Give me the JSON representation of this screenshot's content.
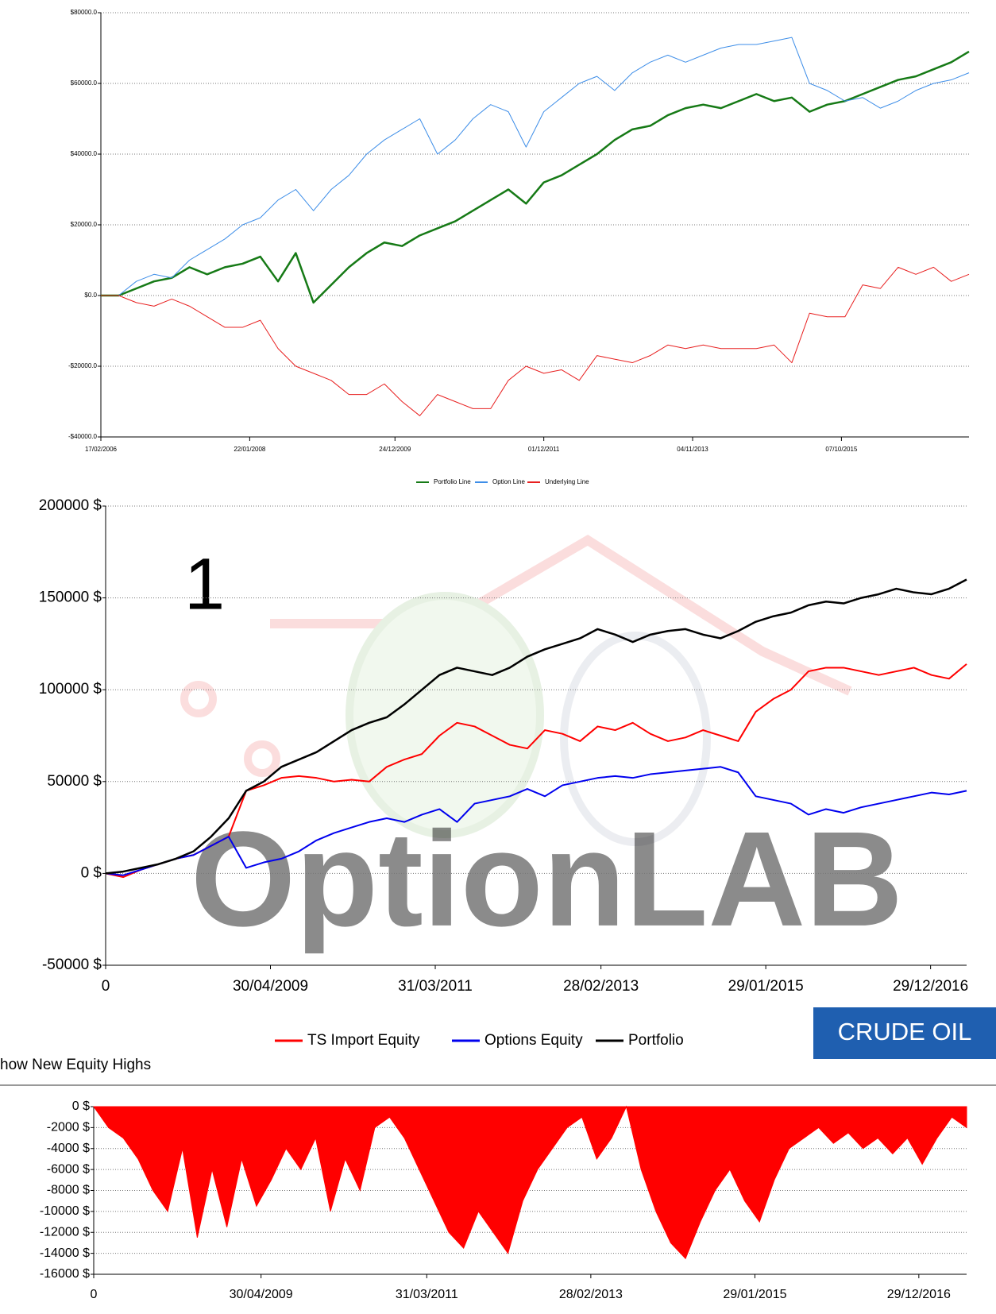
{
  "chart_data": [
    {
      "type": "line",
      "xlim": [
        0,
        49
      ],
      "xticks": [
        {
          "value": 0,
          "label": "17/02/2006"
        },
        {
          "value": 8.4,
          "label": "22/01/2008"
        },
        {
          "value": 16.6,
          "label": "24/12/2009"
        },
        {
          "value": 25,
          "label": "01/12/2011"
        },
        {
          "value": 33.4,
          "label": "04/11/2013"
        },
        {
          "value": 41.8,
          "label": "07/10/2015"
        }
      ],
      "ylim": [
        -40000,
        80000
      ],
      "yticks": [
        {
          "value": -40000,
          "label": "-$40000.0"
        },
        {
          "value": -20000,
          "label": "-$20000.0"
        },
        {
          "value": 0,
          "label": "$0.0"
        },
        {
          "value": 20000,
          "label": "$20000.0"
        },
        {
          "value": 40000,
          "label": "$40000.0"
        },
        {
          "value": 60000,
          "label": "$60000.0"
        },
        {
          "value": 80000,
          "label": "$80000.0"
        }
      ],
      "grid": true,
      "series": [
        {
          "name": "Portfolio Line",
          "color": "#167a16",
          "values": [
            0,
            0,
            2000,
            4000,
            5000,
            8000,
            6000,
            8000,
            9000,
            11000,
            4000,
            12000,
            -2000,
            3000,
            8000,
            12000,
            15000,
            14000,
            17000,
            19000,
            21000,
            24000,
            27000,
            30000,
            26000,
            32000,
            34000,
            37000,
            40000,
            44000,
            47000,
            48000,
            51000,
            53000,
            54000,
            53000,
            55000,
            57000,
            55000,
            56000,
            52000,
            54000,
            55000,
            57000,
            59000,
            61000,
            62000,
            64000,
            66000,
            69000
          ]
        },
        {
          "name": "Option Line",
          "color": "#3e8ee8",
          "values": [
            0,
            0,
            4000,
            6000,
            5000,
            10000,
            13000,
            16000,
            20000,
            22000,
            27000,
            30000,
            24000,
            30000,
            34000,
            40000,
            44000,
            47000,
            50000,
            40000,
            44000,
            50000,
            54000,
            52000,
            42000,
            52000,
            56000,
            60000,
            62000,
            58000,
            63000,
            66000,
            68000,
            66000,
            68000,
            70000,
            71000,
            71000,
            72000,
            73000,
            60000,
            58000,
            55000,
            56000,
            53000,
            55000,
            58000,
            60000,
            61000,
            63000
          ]
        },
        {
          "name": "Underlying Line",
          "color": "#e82020",
          "values": [
            0,
            0,
            -2000,
            -3000,
            -1000,
            -3000,
            -6000,
            -9000,
            -9000,
            -7000,
            -15000,
            -20000,
            -22000,
            -24000,
            -28000,
            -28000,
            -25000,
            -30000,
            -34000,
            -28000,
            -30000,
            -32000,
            -32000,
            -24000,
            -20000,
            -22000,
            -21000,
            -24000,
            -17000,
            -18000,
            -19000,
            -17000,
            -14000,
            -15000,
            -14000,
            -15000,
            -15000,
            -15000,
            -14000,
            -19000,
            -5000,
            -6000,
            -6000,
            3000,
            2000,
            8000,
            6000,
            8000,
            4000,
            6000
          ]
        }
      ]
    },
    {
      "type": "line",
      "annotation": "1",
      "watermark": "OptionLAB",
      "xlim": [
        0,
        49
      ],
      "xticks": [
        0,
        {
          "value": 9.38,
          "label": "30/04/2009"
        },
        {
          "value": 18.76,
          "label": "31/03/2011"
        },
        {
          "value": 28.19,
          "label": "28/02/2013"
        },
        {
          "value": 37.57,
          "label": "29/01/2015"
        },
        {
          "value": 46.95,
          "label": "29/12/2016"
        }
      ],
      "ylim": [
        -50000,
        200000
      ],
      "yticks": [
        {
          "value": -50000,
          "label": "-50000 $"
        },
        {
          "value": 0,
          "label": "0 $"
        },
        {
          "value": 50000,
          "label": "50000 $"
        },
        {
          "value": 100000,
          "label": "100000 $"
        },
        {
          "value": 150000,
          "label": "150000 $"
        },
        {
          "value": 200000,
          "label": "200000 $"
        }
      ],
      "grid": true,
      "series": [
        {
          "name": "TS Import Equity",
          "color": "#ff0000",
          "values": [
            0,
            -2000,
            2000,
            5000,
            8000,
            10000,
            15000,
            20000,
            45000,
            48000,
            52000,
            53000,
            52000,
            50000,
            51000,
            50000,
            58000,
            62000,
            65000,
            75000,
            82000,
            80000,
            75000,
            70000,
            68000,
            78000,
            76000,
            72000,
            80000,
            78000,
            82000,
            76000,
            72000,
            74000,
            78000,
            75000,
            72000,
            88000,
            95000,
            100000,
            110000,
            112000,
            112000,
            110000,
            108000,
            110000,
            112000,
            108000,
            106000,
            114000
          ]
        },
        {
          "name": "Options Equity",
          "color": "#0000ee",
          "values": [
            0,
            -1000,
            2000,
            5000,
            8000,
            10000,
            15000,
            20000,
            3000,
            6000,
            8000,
            12000,
            18000,
            22000,
            25000,
            28000,
            30000,
            28000,
            32000,
            35000,
            28000,
            38000,
            40000,
            42000,
            46000,
            42000,
            48000,
            50000,
            52000,
            53000,
            52000,
            54000,
            55000,
            56000,
            57000,
            58000,
            55000,
            42000,
            40000,
            38000,
            32000,
            35000,
            33000,
            36000,
            38000,
            40000,
            42000,
            44000,
            43000,
            45000
          ]
        },
        {
          "name": "Portfolio",
          "color": "#000000",
          "values": [
            0,
            1000,
            3000,
            5000,
            8000,
            12000,
            20000,
            30000,
            45000,
            50000,
            58000,
            62000,
            66000,
            72000,
            78000,
            82000,
            85000,
            92000,
            100000,
            108000,
            112000,
            110000,
            108000,
            112000,
            118000,
            122000,
            125000,
            128000,
            133000,
            130000,
            126000,
            130000,
            132000,
            133000,
            130000,
            128000,
            132000,
            137000,
            140000,
            142000,
            146000,
            148000,
            147000,
            150000,
            152000,
            155000,
            153000,
            152000,
            155000,
            160000
          ]
        }
      ]
    },
    {
      "type": "area",
      "xlim": [
        0,
        59
      ],
      "xticks": [
        0,
        {
          "value": 11.31,
          "label": "30/04/2009"
        },
        {
          "value": 22.51,
          "label": "31/03/2011"
        },
        {
          "value": 33.6,
          "label": "28/02/2013"
        },
        {
          "value": 44.69,
          "label": "29/01/2015"
        },
        {
          "value": 55.77,
          "label": "29/12/2016"
        }
      ],
      "ylim": [
        -16000,
        0
      ],
      "yticks": [
        {
          "value": -16000,
          "label": "-16000 $"
        },
        {
          "value": -14000,
          "label": "-14000 $"
        },
        {
          "value": -12000,
          "label": "-12000 $"
        },
        {
          "value": -10000,
          "label": "-10000 $"
        },
        {
          "value": -8000,
          "label": "-8000 $"
        },
        {
          "value": -6000,
          "label": "-6000 $"
        },
        {
          "value": -4000,
          "label": "-4000 $"
        },
        {
          "value": -2000,
          "label": "-2000 $"
        },
        {
          "value": 0,
          "label": "0 $"
        }
      ],
      "grid": true,
      "series": [
        {
          "color": "#ff0000",
          "values": [
            0,
            -2000,
            -3000,
            -5000,
            -8000,
            -10000,
            -4000,
            -12500,
            -6000,
            -11500,
            -5000,
            -9500,
            -7000,
            -4000,
            -6000,
            -3000,
            -10000,
            -5000,
            -8000,
            -2000,
            -1000,
            -3000,
            -6000,
            -9000,
            -12000,
            -13500,
            -10000,
            -12000,
            -14000,
            -9000,
            -6000,
            -4000,
            -2000,
            -1000,
            -5000,
            -3000,
            0,
            -6000,
            -10000,
            -13000,
            -14500,
            -11000,
            -8000,
            -6000,
            -9000,
            -11000,
            -7000,
            -4000,
            -3000,
            -2000,
            -3500,
            -2500,
            -4000,
            -3000,
            -4500,
            -3000,
            -5500,
            -3000,
            -1000,
            -2000
          ]
        }
      ]
    }
  ],
  "badge": "CRUDE OIL",
  "checkbox_label": "how New Equity Highs"
}
